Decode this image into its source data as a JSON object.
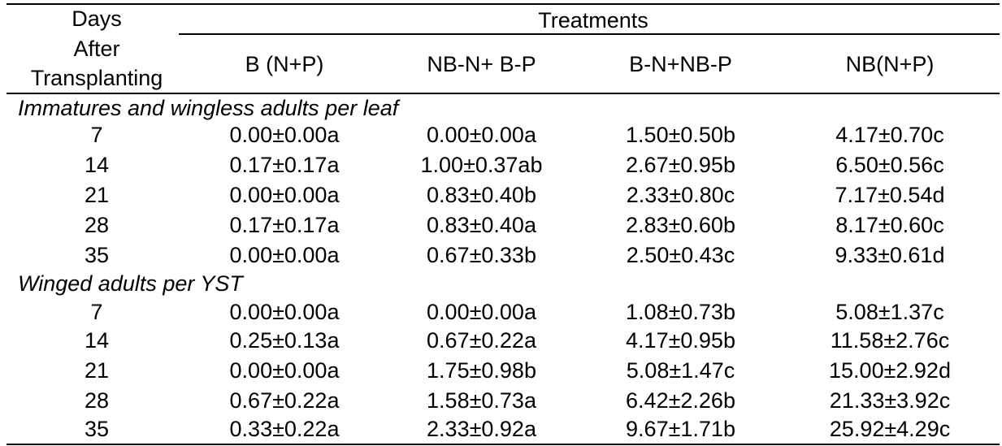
{
  "header": {
    "days_lines": [
      "Days",
      "After",
      "Transplanting"
    ],
    "treatments_label": "Treatments",
    "columns": [
      "B (N+P)",
      "NB-N+ B-P",
      "B-N+NB-P",
      "NB(N+P)"
    ]
  },
  "sections": [
    {
      "label": "Immatures and wingless adults per leaf",
      "rows": [
        {
          "day": "7",
          "values": [
            "0.00±0.00a",
            "0.00±0.00a",
            "1.50±0.50b",
            "4.17±0.70c"
          ]
        },
        {
          "day": "14",
          "values": [
            "0.17±0.17a",
            "1.00±0.37ab",
            "2.67±0.95b",
            "6.50±0.56c"
          ]
        },
        {
          "day": "21",
          "values": [
            "0.00±0.00a",
            "0.83±0.40b",
            "2.33±0.80c",
            "7.17±0.54d"
          ]
        },
        {
          "day": "28",
          "values": [
            "0.17±0.17a",
            "0.83±0.40a",
            "2.83±0.60b",
            "8.17±0.60c"
          ]
        },
        {
          "day": "35",
          "values": [
            "0.00±0.00a",
            "0.67±0.33b",
            "2.50±0.43c",
            "9.33±0.61d"
          ]
        }
      ]
    },
    {
      "label": "Winged adults  per YST",
      "rows": [
        {
          "day": "7",
          "values": [
            "0.00±0.00a",
            "0.00±0.00a",
            "1.08±0.73b",
            "5.08±1.37c"
          ]
        },
        {
          "day": "14",
          "values": [
            "0.25±0.13a",
            "0.67±0.22a",
            "4.17±0.95b",
            "11.58±2.76c"
          ]
        },
        {
          "day": "21",
          "values": [
            "0.00±0.00a",
            "1.75±0.98b",
            "5.08±1.47c",
            "15.00±2.92d"
          ]
        },
        {
          "day": "28",
          "values": [
            "0.67±0.22a",
            "1.58±0.73a",
            "6.42±2.26b",
            "21.33±3.92c"
          ]
        },
        {
          "day": "35",
          "values": [
            "0.33±0.22a",
            "2.33±0.92a",
            "9.67±1.71b",
            "25.92±4.29c"
          ]
        }
      ]
    }
  ]
}
